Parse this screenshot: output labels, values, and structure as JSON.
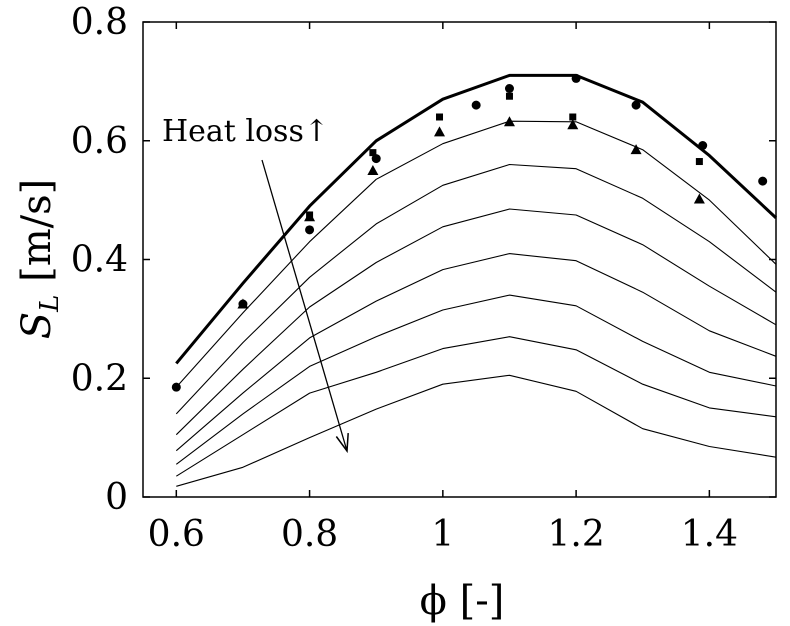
{
  "chart_data": {
    "type": "line",
    "xlabel": "ϕ [-]",
    "ylabel_main": "S",
    "ylabel_sub": "L",
    "ylabel_unit": " [m/s]",
    "xlim": [
      0.55,
      1.5
    ],
    "ylim": [
      0,
      0.8
    ],
    "x_ticks": [
      0.6,
      0.8,
      1.0,
      1.2,
      1.4
    ],
    "x_tick_labels": [
      "0.6",
      "0.8",
      "1",
      "1.2",
      "1.4"
    ],
    "y_ticks": [
      0,
      0.2,
      0.4,
      0.6,
      0.8
    ],
    "y_tick_labels": [
      "0",
      "0.2",
      "0.4",
      "0.6",
      "0.8"
    ],
    "grid": false,
    "annotation": "Heat loss↑",
    "x": [
      0.6,
      0.7,
      0.8,
      0.9,
      1.0,
      1.1,
      1.2,
      1.3,
      1.4,
      1.5
    ],
    "series": [
      {
        "style": "thick",
        "values": [
          0.225,
          0.36,
          0.49,
          0.6,
          0.67,
          0.71,
          0.71,
          0.665,
          0.575,
          0.47
        ]
      },
      {
        "style": "thin",
        "values": [
          0.185,
          0.31,
          0.43,
          0.535,
          0.595,
          0.633,
          0.632,
          0.585,
          0.5,
          0.392
        ]
      },
      {
        "style": "thin",
        "values": [
          0.14,
          0.26,
          0.37,
          0.46,
          0.525,
          0.56,
          0.553,
          0.503,
          0.43,
          0.345
        ]
      },
      {
        "style": "thin",
        "values": [
          0.105,
          0.215,
          0.32,
          0.395,
          0.455,
          0.485,
          0.475,
          0.425,
          0.355,
          0.29
        ]
      },
      {
        "style": "thin",
        "values": [
          0.078,
          0.175,
          0.268,
          0.33,
          0.383,
          0.41,
          0.398,
          0.345,
          0.28,
          0.237
        ]
      },
      {
        "style": "thin",
        "values": [
          0.055,
          0.14,
          0.22,
          0.27,
          0.315,
          0.34,
          0.322,
          0.262,
          0.21,
          0.187
        ]
      },
      {
        "style": "thin",
        "values": [
          0.035,
          0.105,
          0.175,
          0.21,
          0.25,
          0.27,
          0.248,
          0.19,
          0.15,
          0.135
        ]
      },
      {
        "style": "thin",
        "values": [
          0.018,
          0.05,
          0.1,
          0.148,
          0.19,
          0.205,
          0.178,
          0.115,
          0.085,
          0.067
        ]
      }
    ],
    "markers": {
      "circle": [
        [
          0.6,
          0.185
        ],
        [
          0.7,
          0.325
        ],
        [
          0.8,
          0.45
        ],
        [
          0.9,
          0.57
        ],
        [
          1.05,
          0.66
        ],
        [
          1.1,
          0.688
        ],
        [
          1.2,
          0.705
        ],
        [
          1.29,
          0.66
        ],
        [
          1.39,
          0.592
        ],
        [
          1.48,
          0.532
        ]
      ],
      "square": [
        [
          0.8,
          0.475
        ],
        [
          0.895,
          0.58
        ],
        [
          0.995,
          0.64
        ],
        [
          1.1,
          0.675
        ],
        [
          1.195,
          0.64
        ],
        [
          1.385,
          0.565
        ]
      ],
      "triangle": [
        [
          0.7,
          0.325
        ],
        [
          0.8,
          0.472
        ],
        [
          0.895,
          0.55
        ],
        [
          0.995,
          0.615
        ],
        [
          1.1,
          0.632
        ],
        [
          1.195,
          0.627
        ],
        [
          1.29,
          0.585
        ],
        [
          1.385,
          0.502
        ]
      ]
    }
  }
}
